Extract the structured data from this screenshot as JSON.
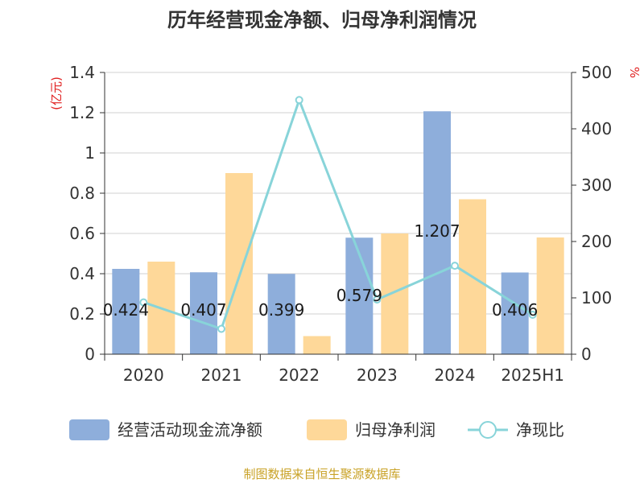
{
  "chart_data": {
    "type": "bar",
    "title": "历年经营现金净额、归母净利润情况",
    "categories": [
      "2020",
      "2021",
      "2022",
      "2023",
      "2024",
      "2025H1"
    ],
    "y_left_unit": "(亿元)",
    "y_right_unit": "%",
    "y_left_ticks": [
      "0",
      "0.2",
      "0.4",
      "0.6",
      "0.8",
      "1",
      "1.2",
      "1.4"
    ],
    "y_right_ticks": [
      "0",
      "100",
      "200",
      "300",
      "400",
      "500"
    ],
    "ylim": [
      0,
      1.4
    ],
    "y2lim": [
      0,
      500
    ],
    "grid": true,
    "legend_position": "bottom",
    "series": [
      {
        "name": "经营活动现金流净额",
        "type": "bar",
        "axis": "left",
        "color": "#8eaedb",
        "values": [
          0.424,
          0.407,
          0.399,
          0.579,
          1.207,
          0.406
        ],
        "labels": [
          "0.424",
          "0.407",
          "0.399",
          "0.579",
          "1.207",
          "0.406"
        ]
      },
      {
        "name": "归母净利润",
        "type": "bar",
        "axis": "left",
        "color": "#fed899",
        "values": [
          0.46,
          0.9,
          0.09,
          0.6,
          0.77,
          0.58
        ]
      },
      {
        "name": "净现比",
        "type": "line",
        "axis": "right",
        "color": "#88d4d9",
        "values": [
          92,
          45,
          451,
          97,
          157,
          70
        ]
      }
    ],
    "source": "制图数据来自恒生聚源数据库"
  }
}
